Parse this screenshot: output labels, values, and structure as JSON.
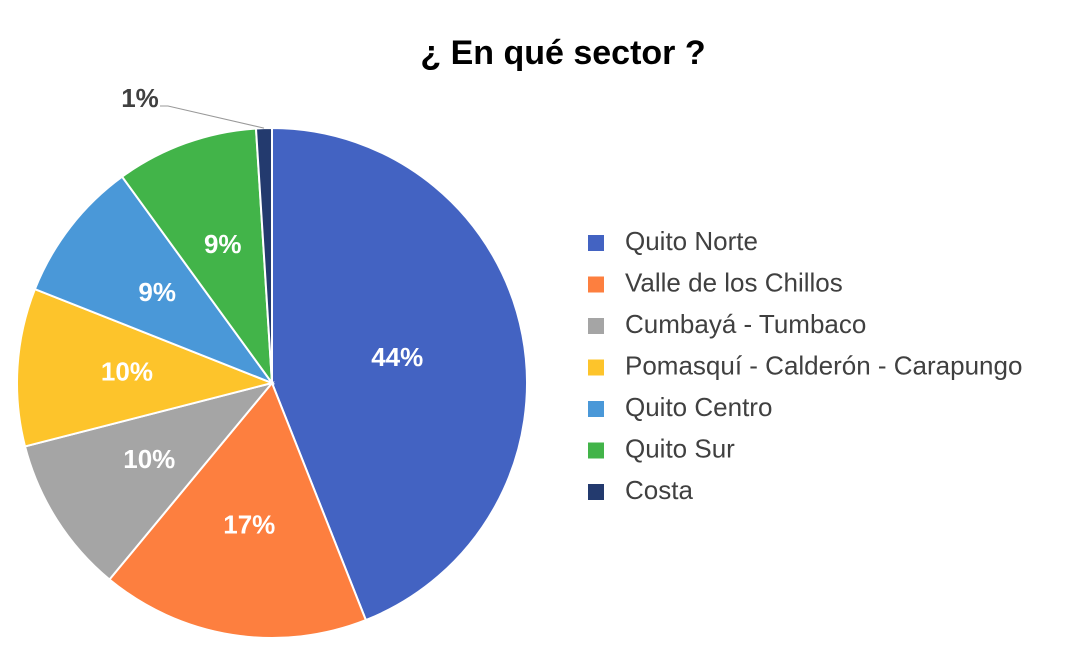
{
  "chart_data": {
    "type": "pie",
    "title": "¿ En qué sector ?",
    "categories": [
      "Quito Norte",
      "Valle de los Chillos",
      "Cumbayá - Tumbaco",
      "Pomasquí - Calderón - Carapungo",
      "Quito Centro",
      "Quito Sur",
      "Costa"
    ],
    "values": [
      44,
      17,
      10,
      10,
      9,
      9,
      1
    ],
    "value_labels": [
      "44%",
      "17%",
      "10%",
      "10%",
      "9%",
      "9%",
      "1%"
    ],
    "colors": [
      "#4363c2",
      "#fd7f3f",
      "#a5a5a5",
      "#fdc42b",
      "#4a98d8",
      "#42b449",
      "#233a6e"
    ],
    "legend": "right"
  }
}
